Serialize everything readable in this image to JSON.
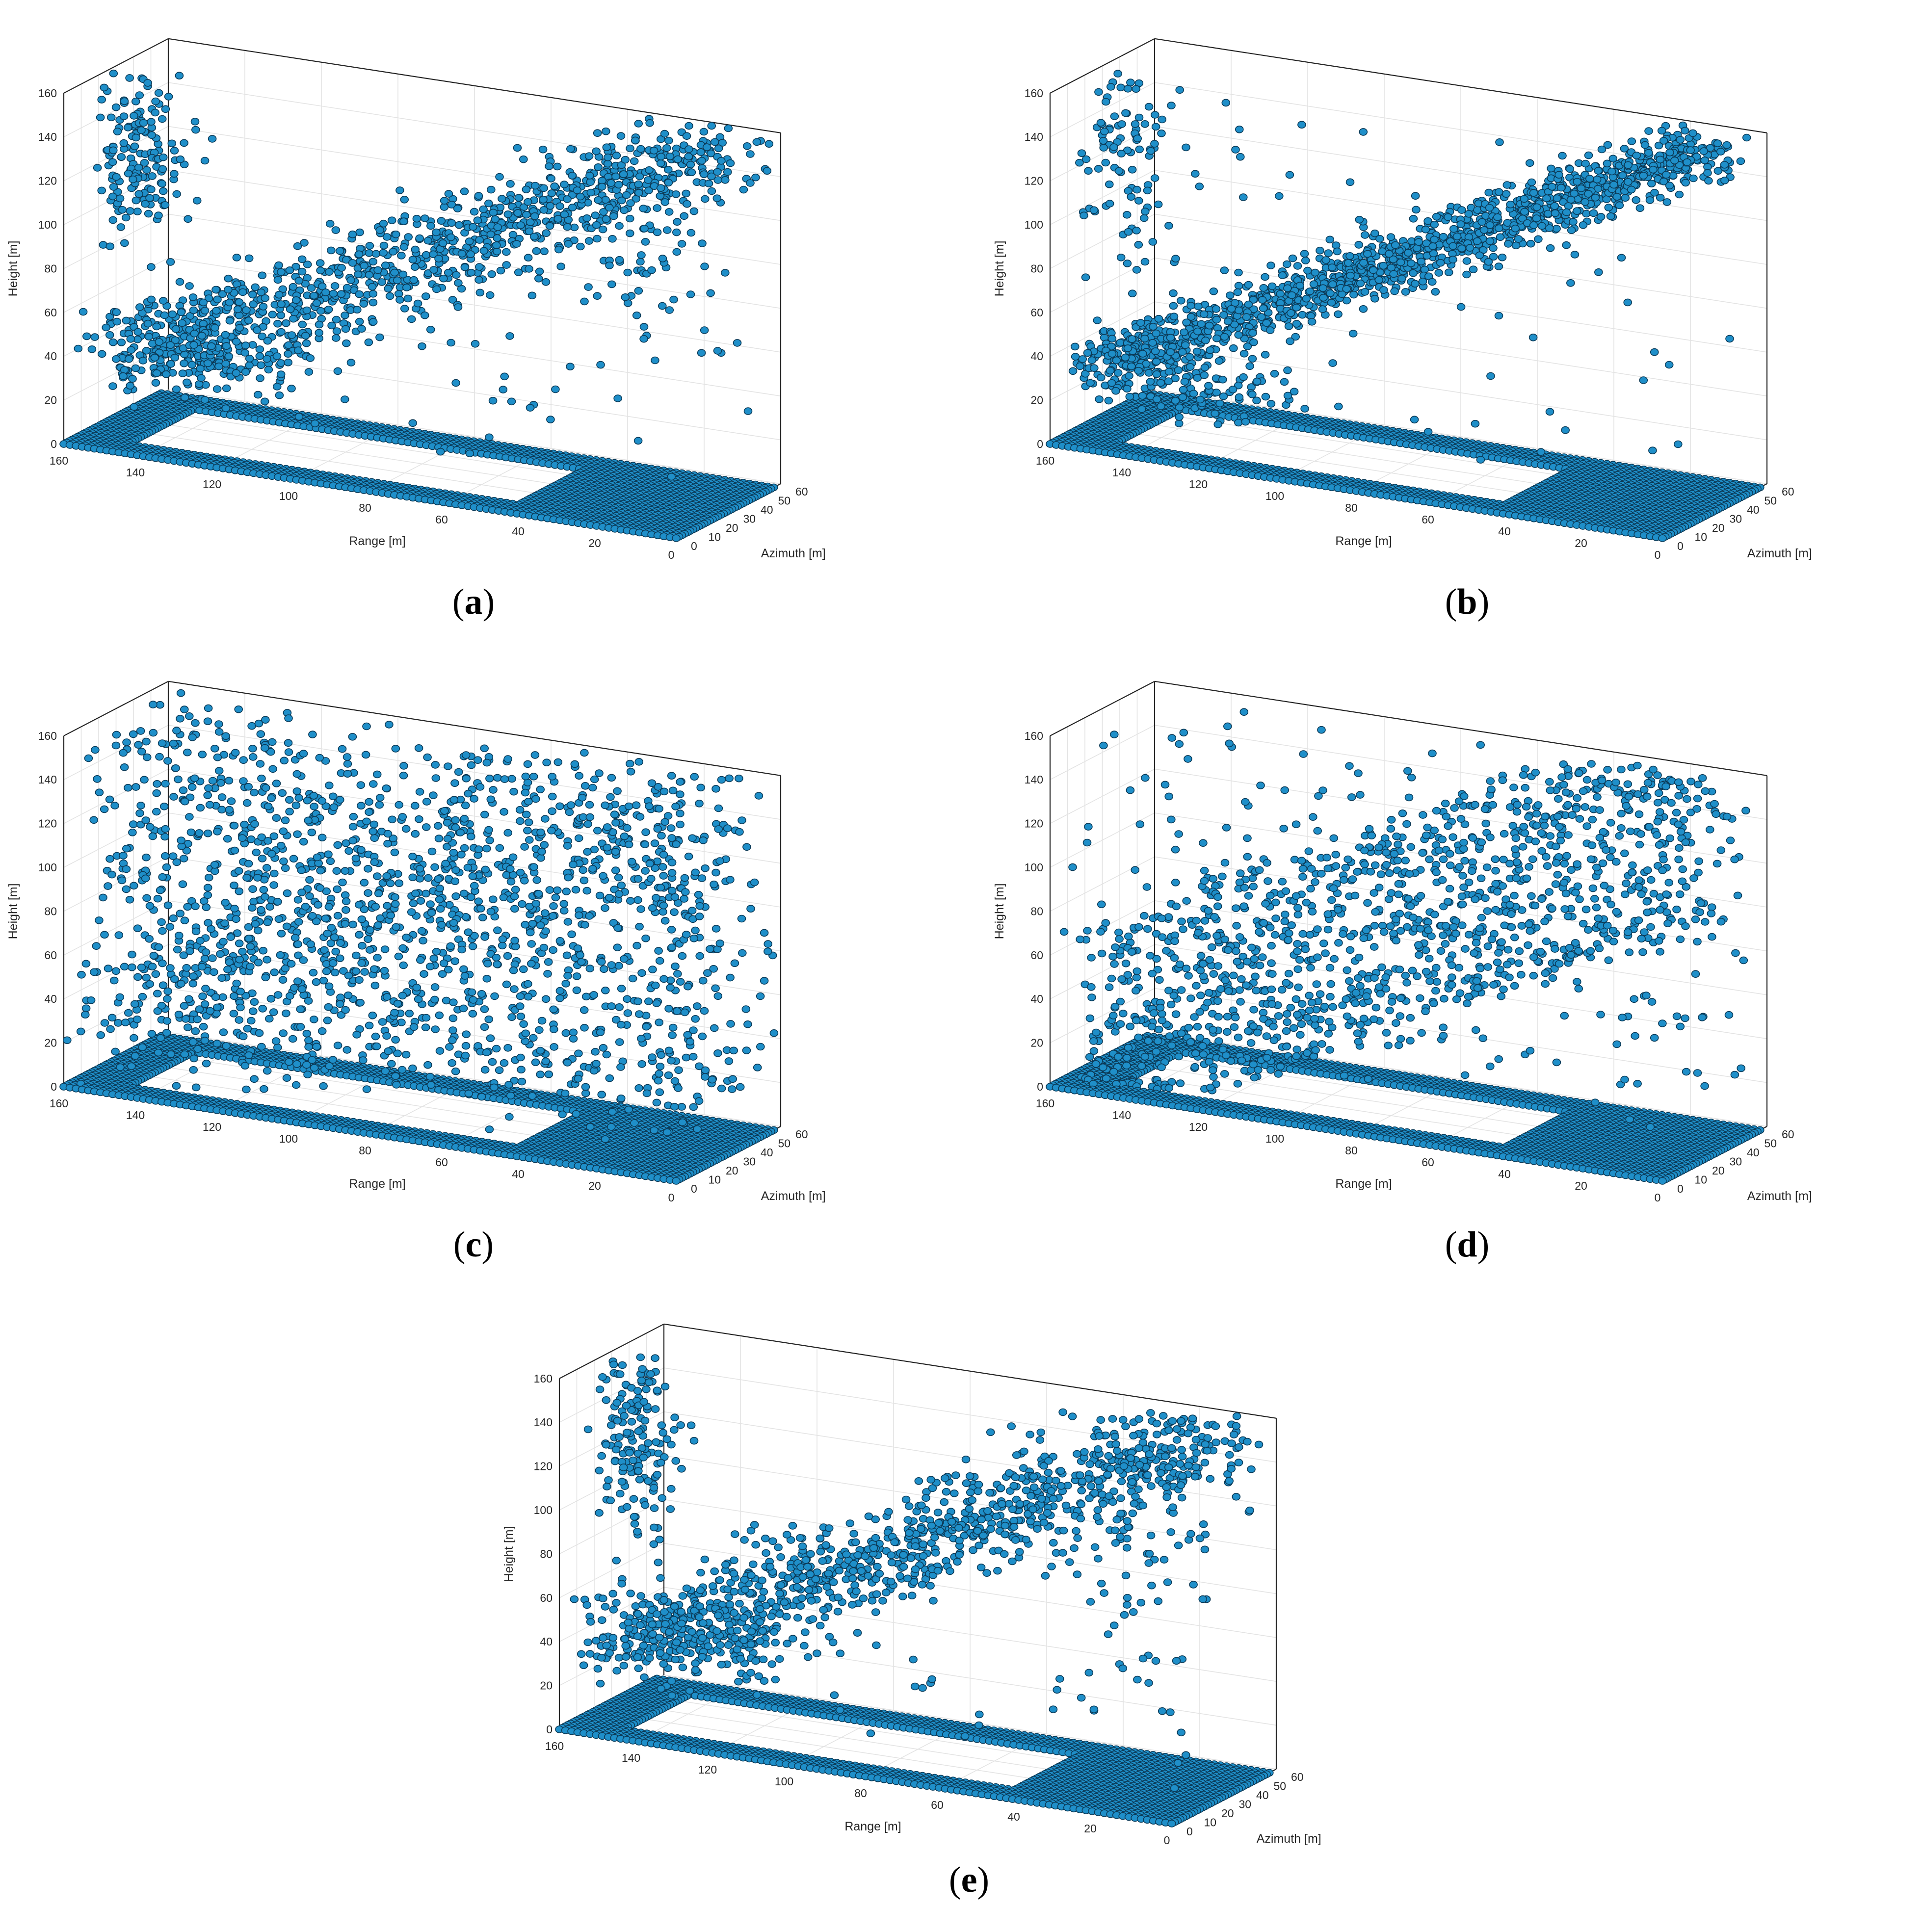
{
  "chart_data": [
    {
      "panel": "a",
      "caption_letter": "a",
      "type": "scatter3d",
      "xlabel": "Range  [m]",
      "ylabel": "Azimuth [m]",
      "zlabel": "Height [m]",
      "x_ticks": [
        "0",
        "20",
        "40",
        "60",
        "80",
        "100",
        "120",
        "140",
        "160"
      ],
      "y_ticks": [
        "0",
        "10",
        "20",
        "30",
        "40",
        "50",
        "60"
      ],
      "z_ticks": [
        "0",
        "20",
        "40",
        "60",
        "80",
        "100",
        "120",
        "140",
        "160"
      ],
      "xlim": [
        0,
        160
      ],
      "ylim": [
        0,
        60
      ],
      "zlim": [
        0,
        160
      ],
      "grid": true,
      "marker_color": "#1f8fc9",
      "marker_edge_color": "#0b3a57",
      "ground_structure": "rectangular frame at height 0, range 0-160, azimuth 0-60, inner opening range ~45-145, azimuth ~10-45",
      "pattern": "clustered diagonal ridge rising from (range 150, az 10, h 40) to (range 10, az 50, h 160) plus left cluster near range 150, azimuth 20, height 100-160"
    },
    {
      "panel": "b",
      "caption_letter": "b",
      "type": "scatter3d",
      "xlabel": "Range  [m]",
      "ylabel": "Azimuth [m]",
      "zlabel": "Height [m]",
      "x_ticks": [
        "0",
        "20",
        "40",
        "60",
        "80",
        "100",
        "120",
        "140",
        "160"
      ],
      "y_ticks": [
        "0",
        "10",
        "20",
        "30",
        "40",
        "50",
        "60"
      ],
      "z_ticks": [
        "0",
        "20",
        "40",
        "60",
        "80",
        "100",
        "120",
        "140",
        "160"
      ],
      "xlim": [
        0,
        160
      ],
      "ylim": [
        0,
        60
      ],
      "zlim": [
        0,
        160
      ],
      "grid": true,
      "marker_color": "#1f8fc9",
      "marker_edge_color": "#0b3a57",
      "pattern": "dense, tight diagonal ridge, sparse outliers"
    },
    {
      "panel": "c",
      "caption_letter": "c",
      "type": "scatter3d",
      "xlabel": "Range  [m]",
      "ylabel": "Azimuth [m]",
      "zlabel": "Height [m]",
      "x_ticks": [
        "0",
        "20",
        "40",
        "60",
        "80",
        "100",
        "120",
        "140",
        "160"
      ],
      "y_ticks": [
        "0",
        "10",
        "20",
        "30",
        "40",
        "50",
        "60"
      ],
      "z_ticks": [
        "0",
        "20",
        "40",
        "60",
        "80",
        "100",
        "120",
        "140",
        "160"
      ],
      "xlim": [
        0,
        160
      ],
      "ylim": [
        0,
        60
      ],
      "zlim": [
        0,
        160
      ],
      "grid": true,
      "marker_color": "#1f8fc9",
      "marker_edge_color": "#0b3a57",
      "pattern": "points scattered uniformly throughout the volume"
    },
    {
      "panel": "d",
      "caption_letter": "d",
      "type": "scatter3d",
      "xlabel": "Range  [m]",
      "ylabel": "Azimuth [m]",
      "zlabel": "Height [m]",
      "x_ticks": [
        "0",
        "20",
        "40",
        "60",
        "80",
        "100",
        "120",
        "140",
        "160"
      ],
      "y_ticks": [
        "0",
        "10",
        "20",
        "30",
        "40",
        "50",
        "60"
      ],
      "z_ticks": [
        "0",
        "20",
        "40",
        "60",
        "80",
        "100",
        "120",
        "140",
        "160"
      ],
      "xlim": [
        0,
        160
      ],
      "ylim": [
        0,
        60
      ],
      "zlim": [
        0,
        160
      ],
      "grid": true,
      "marker_color": "#1f8fc9",
      "marker_edge_color": "#0b3a57",
      "pattern": "several parallel diagonal streaks with moderate scatter"
    },
    {
      "panel": "e",
      "caption_letter": "e",
      "type": "scatter3d",
      "xlabel": "Range  [m]",
      "ylabel": "Azimuth [m]",
      "zlabel": "Height [m]",
      "x_ticks": [
        "0",
        "20",
        "40",
        "60",
        "80",
        "100",
        "120",
        "140",
        "160"
      ],
      "y_ticks": [
        "0",
        "10",
        "20",
        "30",
        "40",
        "50",
        "60"
      ],
      "z_ticks": [
        "0",
        "20",
        "40",
        "60",
        "80",
        "100",
        "120",
        "140",
        "160"
      ],
      "xlim": [
        0,
        160
      ],
      "ylim": [
        0,
        60
      ],
      "zlim": [
        0,
        160
      ],
      "grid": true,
      "marker_color": "#1f8fc9",
      "marker_edge_color": "#0b3a57",
      "pattern": "dense diagonal ridge with left cluster, similar to (a)"
    }
  ]
}
